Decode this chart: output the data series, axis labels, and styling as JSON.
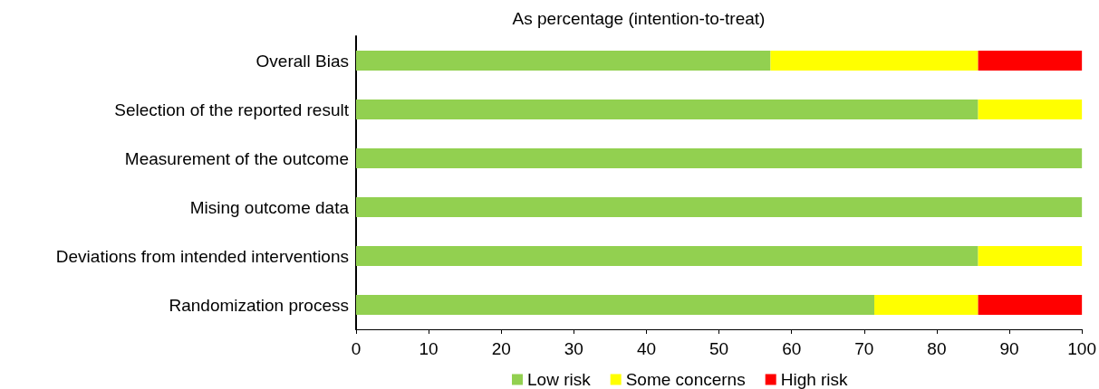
{
  "chart_data": {
    "type": "bar",
    "title": "As percentage (intention-to-treat)",
    "orientation": "horizontal",
    "stacked": true,
    "categories": [
      "Overall Bias",
      "Selection of the reported result",
      "Measurement of the outcome",
      "Mising outcome data",
      "Deviations from intended interventions",
      "Randomization process"
    ],
    "series": [
      {
        "name": "Low risk",
        "color": "#92d050",
        "values": [
          57.1,
          85.7,
          100,
          100,
          85.7,
          71.4
        ]
      },
      {
        "name": "Some concerns",
        "color": "#ffff00",
        "values": [
          28.6,
          14.3,
          0,
          0,
          14.3,
          14.3
        ]
      },
      {
        "name": "High risk",
        "color": "#ff0000",
        "values": [
          14.3,
          0,
          0,
          0,
          0,
          14.3
        ]
      }
    ],
    "xlim": [
      0,
      100
    ],
    "xticks": [
      0,
      10,
      20,
      30,
      40,
      50,
      60,
      70,
      80,
      90,
      100
    ],
    "grid": false,
    "legend": "bottom"
  }
}
